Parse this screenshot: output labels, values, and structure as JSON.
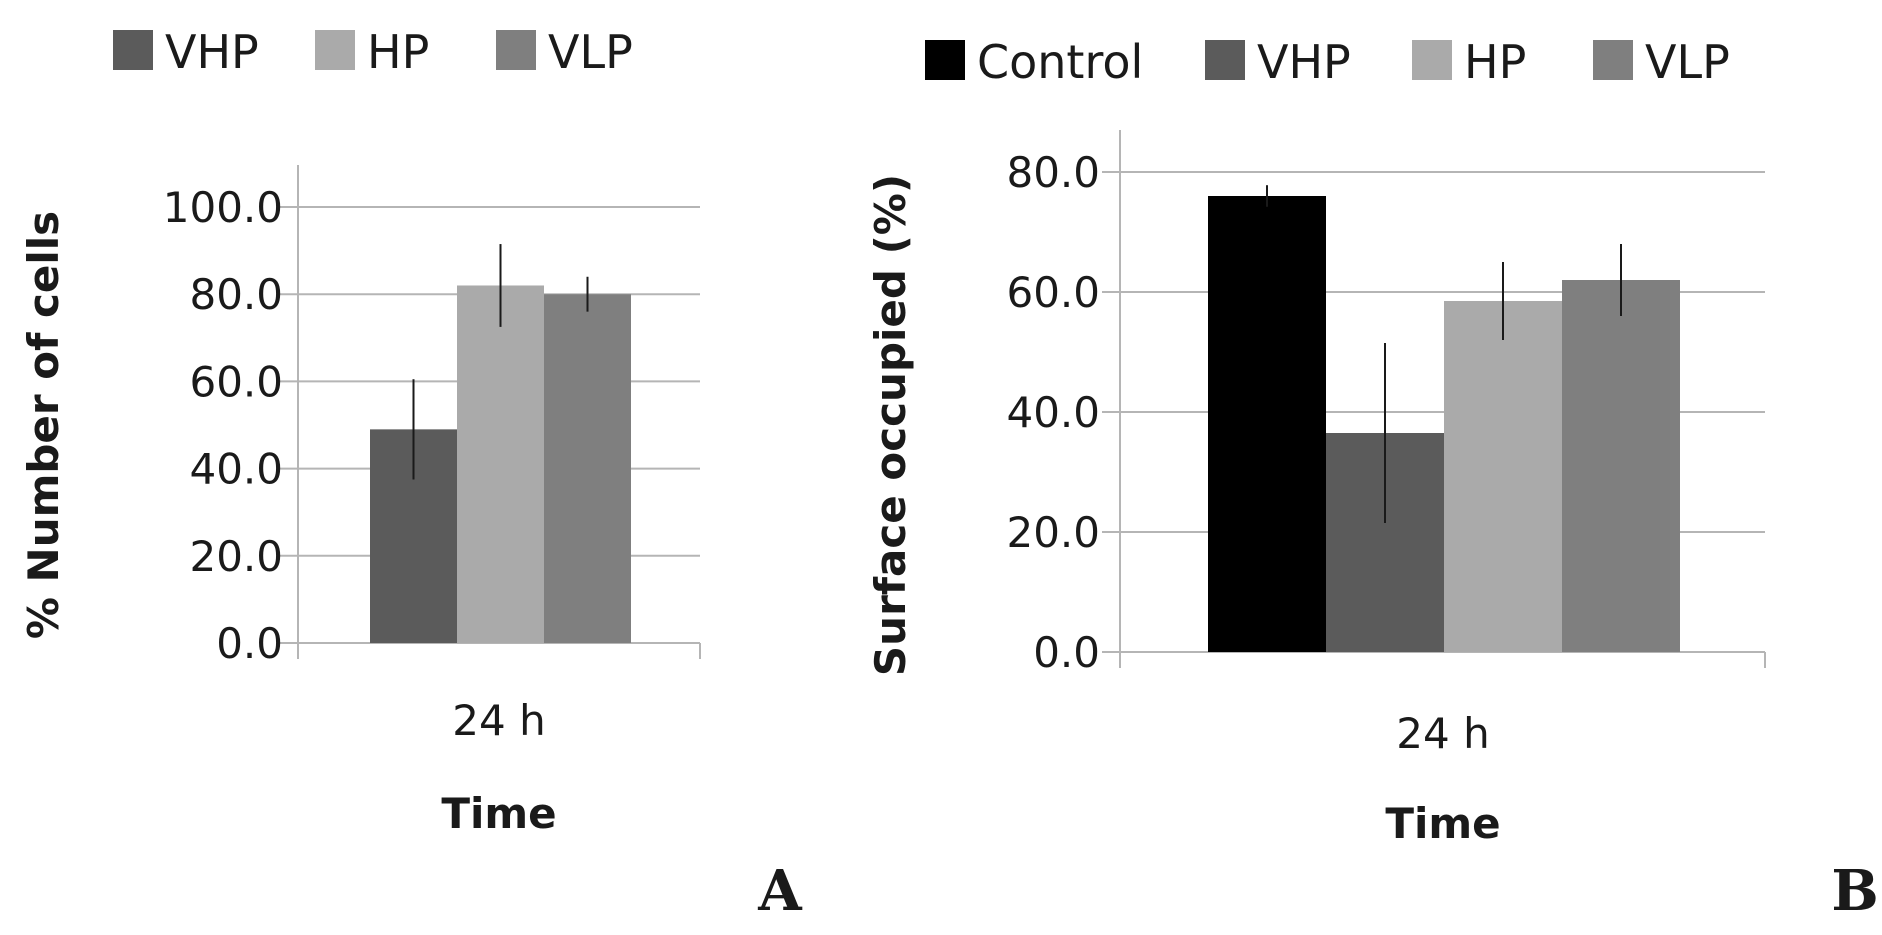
{
  "chart_data": [
    {
      "type": "bar",
      "panel_label": "A",
      "categories": [
        "24 h"
      ],
      "xlabel": "Time",
      "ylabel": "% Number of cells",
      "ylim": [
        0,
        100
      ],
      "yticks": [
        "0.0",
        "20.0",
        "40.0",
        "60.0",
        "80.0",
        "100.0"
      ],
      "legend_position": "top-left",
      "grid": true,
      "series": [
        {
          "name": "VHP",
          "values": [
            49.0
          ],
          "error": [
            11.5
          ],
          "color": "#5b5b5b"
        },
        {
          "name": "HP",
          "values": [
            82.0
          ],
          "error": [
            9.5
          ],
          "color": "#aaaaaa"
        },
        {
          "name": "VLP",
          "values": [
            80.0
          ],
          "error": [
            4.0
          ],
          "color": "#7f7f7f"
        }
      ]
    },
    {
      "type": "bar",
      "panel_label": "B",
      "categories": [
        "24 h"
      ],
      "xlabel": "Time",
      "ylabel": "Surface occupied (%)",
      "ylim": [
        0,
        80
      ],
      "yticks": [
        "0.0",
        "20.0",
        "40.0",
        "60.0",
        "80.0"
      ],
      "legend_position": "top-right",
      "grid": true,
      "series": [
        {
          "name": "Control",
          "values": [
            76.0
          ],
          "error": [
            1.8
          ],
          "color": "#000000"
        },
        {
          "name": "VHP",
          "values": [
            36.5
          ],
          "error": [
            15.0
          ],
          "color": "#5b5b5b"
        },
        {
          "name": "HP",
          "values": [
            58.5
          ],
          "error": [
            6.5
          ],
          "color": "#aaaaaa"
        },
        {
          "name": "VLP",
          "values": [
            62.0
          ],
          "error": [
            6.0
          ],
          "color": "#7f7f7f"
        }
      ]
    }
  ]
}
